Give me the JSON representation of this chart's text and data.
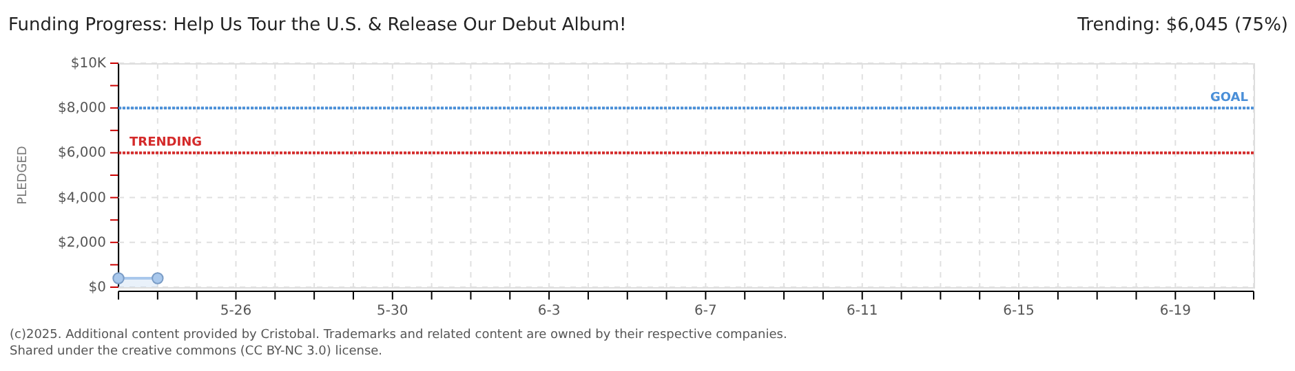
{
  "chart_data": {
    "type": "area",
    "title": "Funding Progress: Help Us Tour the U.S. & Release Our Debut Album!",
    "subtitle": "Trending: $6,045 (75%)",
    "ylabel": "PLEDGED",
    "x": [
      "2025-05-23",
      "2025-05-24"
    ],
    "series": [
      {
        "color": "#a9c8ec",
        "values": [
          400,
          400
        ]
      }
    ],
    "marker": "circle",
    "grid": true,
    "xlim": [
      "2025-05-23",
      "2025-06-21"
    ],
    "xticks": [
      {
        "value": "2025-05-23",
        "label": null
      },
      {
        "value": "2025-05-24",
        "label": null
      },
      {
        "value": "2025-05-25",
        "label": null
      },
      {
        "value": "2025-05-26",
        "label": "5-26"
      },
      {
        "value": "2025-05-27",
        "label": null
      },
      {
        "value": "2025-05-28",
        "label": null
      },
      {
        "value": "2025-05-29",
        "label": null
      },
      {
        "value": "2025-05-30",
        "label": "5-30"
      },
      {
        "value": "2025-05-31",
        "label": null
      },
      {
        "value": "2025-06-01",
        "label": null
      },
      {
        "value": "2025-06-02",
        "label": null
      },
      {
        "value": "2025-06-03",
        "label": "6-3"
      },
      {
        "value": "2025-06-04",
        "label": null
      },
      {
        "value": "2025-06-05",
        "label": null
      },
      {
        "value": "2025-06-06",
        "label": null
      },
      {
        "value": "2025-06-07",
        "label": "6-7"
      },
      {
        "value": "2025-06-08",
        "label": null
      },
      {
        "value": "2025-06-09",
        "label": null
      },
      {
        "value": "2025-06-10",
        "label": null
      },
      {
        "value": "2025-06-11",
        "label": "6-11"
      },
      {
        "value": "2025-06-12",
        "label": null
      },
      {
        "value": "2025-06-13",
        "label": null
      },
      {
        "value": "2025-06-14",
        "label": null
      },
      {
        "value": "2025-06-15",
        "label": "6-15"
      },
      {
        "value": "2025-06-16",
        "label": null
      },
      {
        "value": "2025-06-17",
        "label": null
      },
      {
        "value": "2025-06-18",
        "label": null
      },
      {
        "value": "2025-06-19",
        "label": "6-19"
      },
      {
        "value": "2025-06-20",
        "label": null
      },
      {
        "value": "2025-06-21",
        "label": null
      }
    ],
    "ylim": [
      0,
      10000
    ],
    "yticks": [
      {
        "value": 0,
        "label": "$0"
      },
      {
        "value": 1000,
        "label": null
      },
      {
        "value": 2000,
        "label": "$2,000"
      },
      {
        "value": 3000,
        "label": null
      },
      {
        "value": 4000,
        "label": "$4,000"
      },
      {
        "value": 5000,
        "label": null
      },
      {
        "value": 6000,
        "label": "$6,000"
      },
      {
        "value": 7000,
        "label": null
      },
      {
        "value": 8000,
        "label": "$8,000"
      },
      {
        "value": 9000,
        "label": null
      },
      {
        "value": 10000,
        "label": "$10K"
      }
    ],
    "ref_lines": [
      {
        "axis": "y",
        "value": 8000,
        "label": "GOAL",
        "color": "#4a8fd8",
        "line_style": "dotted"
      },
      {
        "axis": "y",
        "value": 6000,
        "label": "TRENDING",
        "color": "#d42a2a",
        "line_style": "dotted"
      }
    ],
    "annotations": [
      "(c)2025. Additional content provided by Cristobal. Trademarks and related content are owned by their respective companies.",
      "Shared under the creative commons (CC BY-NC 3.0) license."
    ]
  }
}
